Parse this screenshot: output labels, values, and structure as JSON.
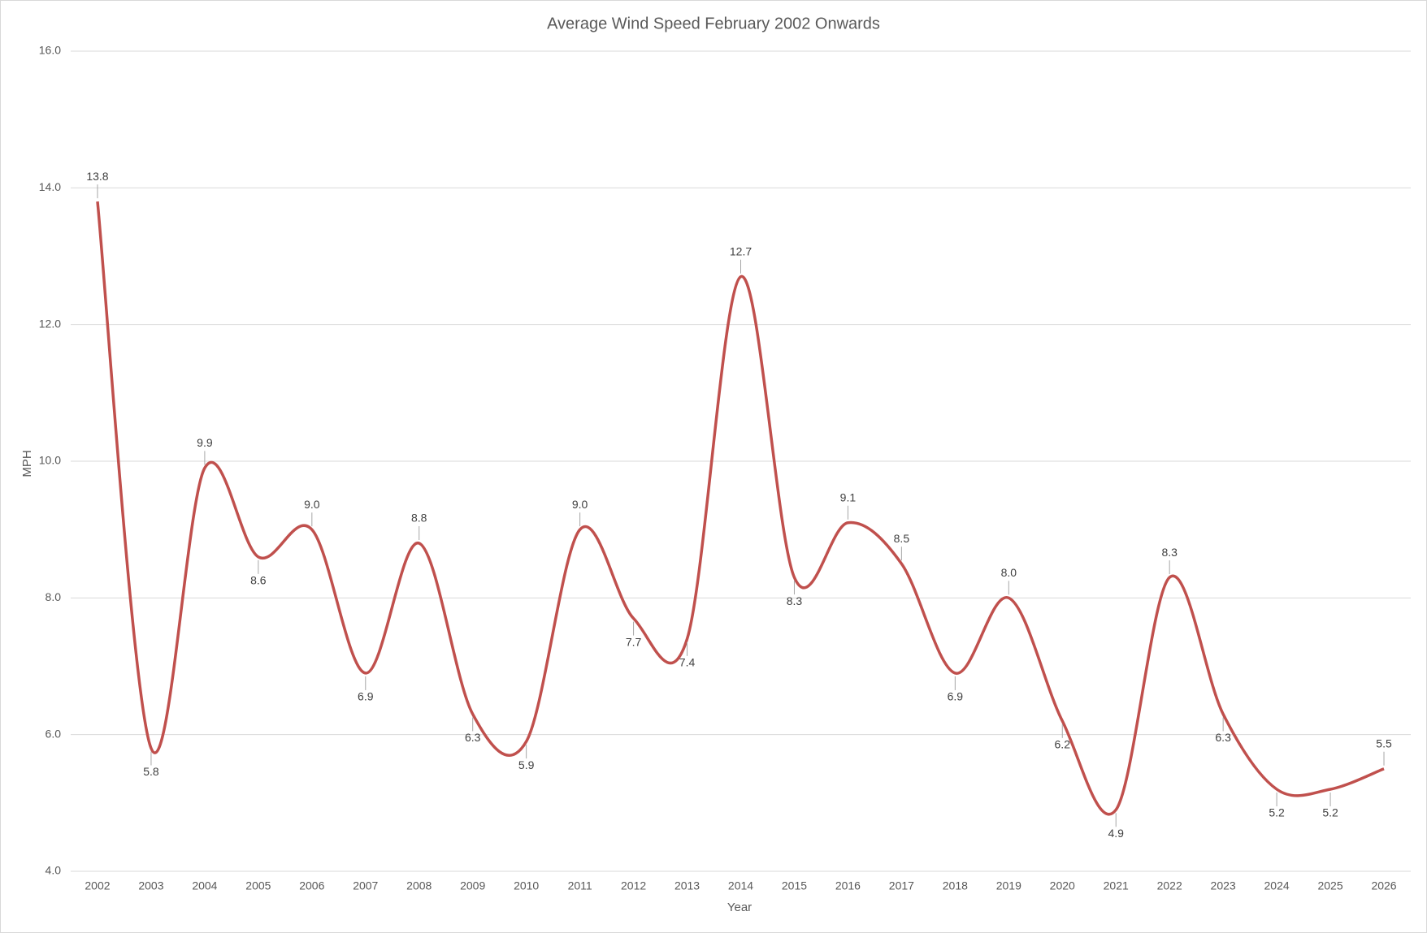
{
  "chart_data": {
    "type": "line",
    "title": "Average Wind Speed February 2002 Onwards",
    "x_label": "Year",
    "y_label": "MPH",
    "categories": [
      "2002",
      "2003",
      "2004",
      "2005",
      "2006",
      "2007",
      "2008",
      "2009",
      "2010",
      "2011",
      "2012",
      "2013",
      "2014",
      "2015",
      "2016",
      "2017",
      "2018",
      "2019",
      "2020",
      "2021",
      "2022",
      "2023",
      "2024",
      "2025",
      "2026"
    ],
    "values": [
      13.8,
      5.8,
      9.9,
      8.6,
      9,
      6.9,
      8.8,
      6.3,
      5.9,
      9,
      7.7,
      7.4,
      12.7,
      8.3,
      9.1,
      8.5,
      6.9,
      8,
      6.2,
      4.9,
      8.3,
      6.3,
      5.2,
      5.2,
      5.5
    ],
    "value_labels": [
      "13.8",
      "5.8",
      "9.9",
      "8.6",
      "9.0",
      "6.9",
      "8.8",
      "6.3",
      "5.9",
      "9.0",
      "7.7",
      "7.4",
      "12.7",
      "8.3",
      "9.1",
      "8.5",
      "6.9",
      "8.0",
      "6.2",
      "4.9",
      "8.3",
      "6.3",
      "5.2",
      "5.2",
      "5.5"
    ],
    "color": "#c0504d",
    "smooth": true,
    "ylim": [
      4,
      16
    ],
    "yticks": [
      {
        "value": 4,
        "label": "4.0"
      },
      {
        "value": 6,
        "label": "6.0"
      },
      {
        "value": 8,
        "label": "8.0"
      },
      {
        "value": 10,
        "label": "10.0"
      },
      {
        "value": 12,
        "label": "12.0"
      },
      {
        "value": 14,
        "label": "14.0"
      },
      {
        "value": 16,
        "label": "16.0"
      }
    ],
    "grid": true
  }
}
